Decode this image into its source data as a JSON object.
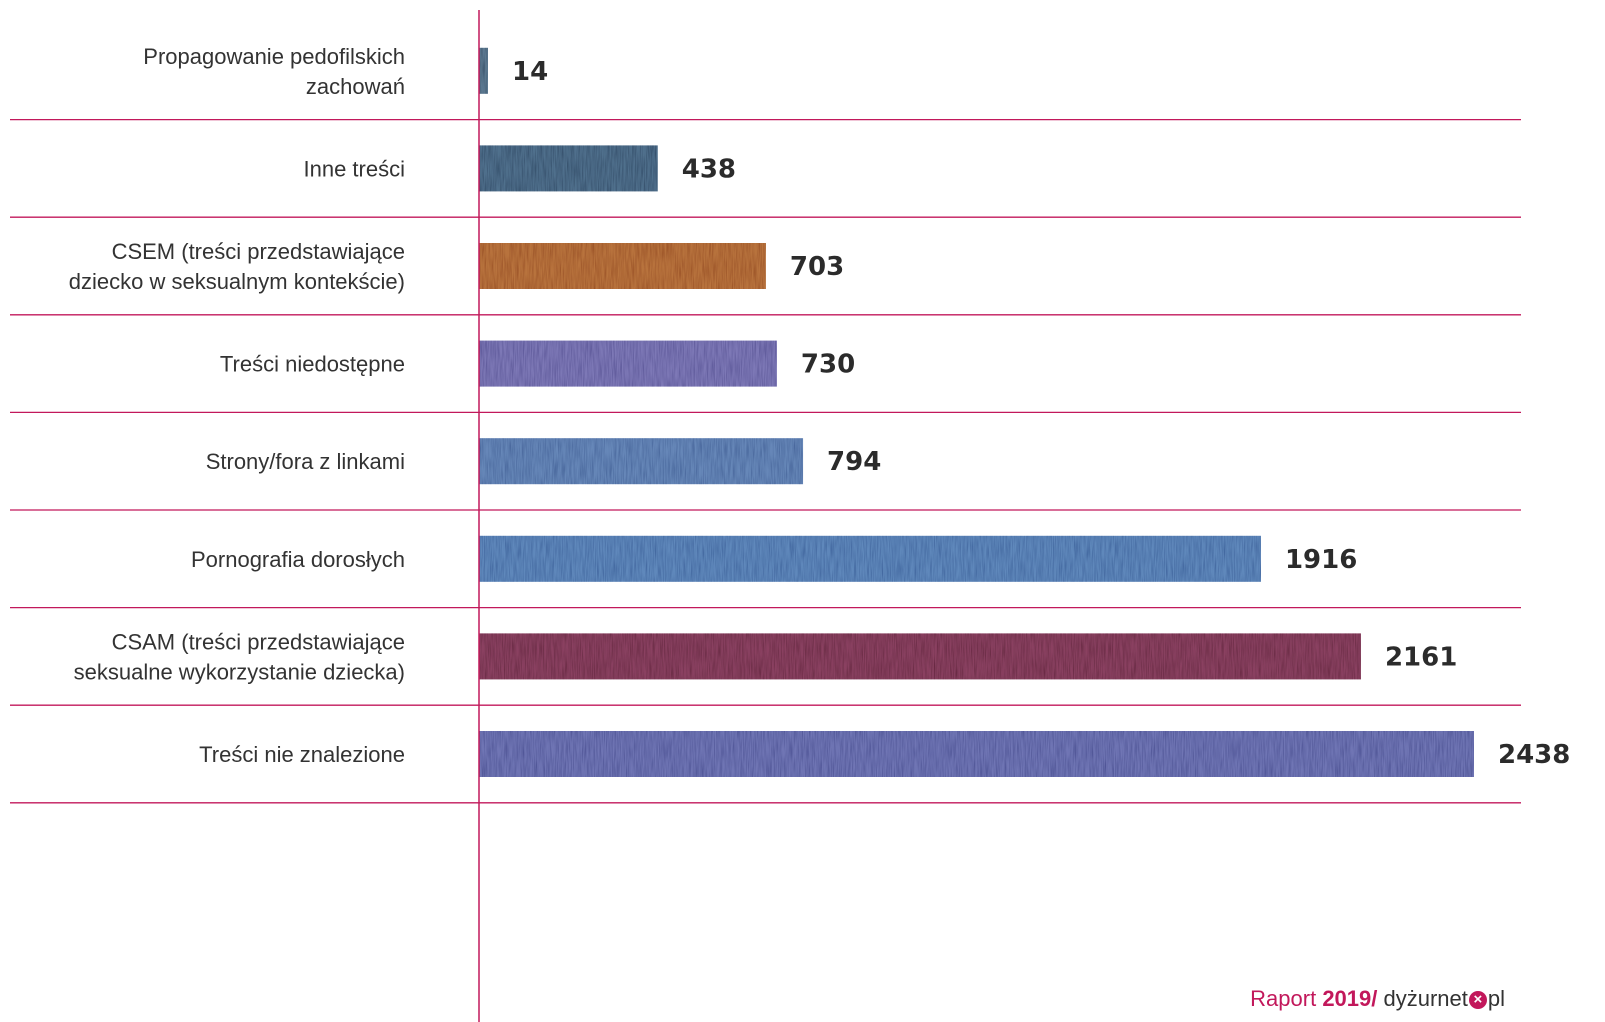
{
  "chart_data": {
    "type": "bar",
    "orientation": "horizontal",
    "categories": [
      [
        "Propagowanie pedofilskich",
        "zachowań"
      ],
      [
        "Inne treści"
      ],
      [
        "CSEM   (treści przedstawiające",
        "dziecko w seksualnym kontekście)"
      ],
      [
        "Treści niedostępne"
      ],
      [
        "Strony/fora z linkami"
      ],
      [
        "Pornografia dorosłych"
      ],
      [
        "CSAM   (treści przedstawiające",
        "seksualne wykorzystanie dziecka)"
      ],
      [
        "Treści nie znalezione"
      ]
    ],
    "values": [
      14,
      438,
      703,
      730,
      794,
      1916,
      2161,
      2438
    ],
    "bar_colors": [
      "#5d7a92",
      "#4f6f8c",
      "#b8733d",
      "#7d78b6",
      "#6687b8",
      "#5f88bb",
      "#8a4161",
      "#6f75b4"
    ],
    "grid_color": "#c2185b",
    "xlim": [
      0,
      2438
    ],
    "title": "",
    "xlabel": "",
    "ylabel": ""
  },
  "footer": {
    "prefix": "Raport ",
    "year": "2019/",
    "brand_a": " dyżurnet",
    "mark_icon": "x-circle-icon",
    "brand_b": "pl"
  }
}
